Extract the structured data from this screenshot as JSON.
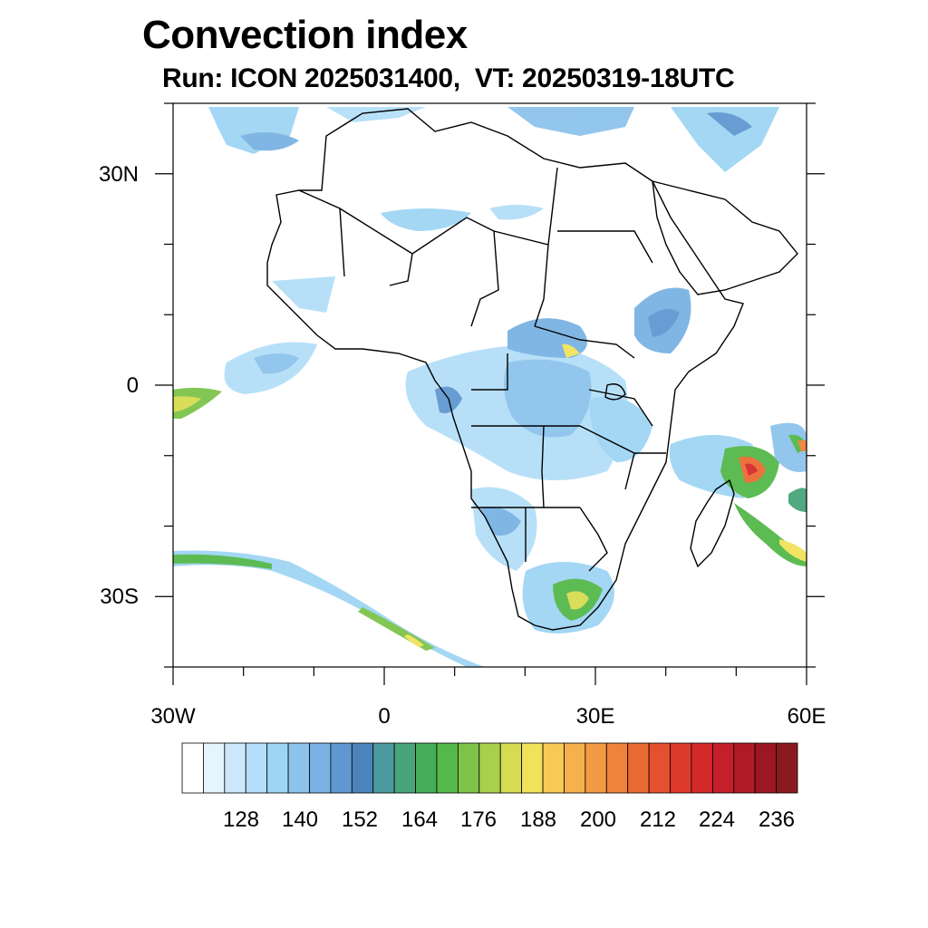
{
  "header": {
    "title": "Convection index",
    "subtitle": "Run: ICON 2025031400,  VT: 20250319-18UTC"
  },
  "axes": {
    "x_labels": [
      "30W",
      "0",
      "30E",
      "60E"
    ],
    "y_labels": [
      "30N",
      "0",
      "30S"
    ],
    "lon_range": [
      -30,
      60
    ],
    "lat_range": [
      -40,
      40
    ]
  },
  "colorbar": {
    "labels": [
      "128",
      "140",
      "152",
      "164",
      "176",
      "188",
      "200",
      "212",
      "224",
      "236"
    ],
    "colors": [
      "#ffffff",
      "#e6f4fd",
      "#cce8fa",
      "#b4dff8",
      "#9fd5f4",
      "#8ec3eb",
      "#7ab3e3",
      "#5f98d0",
      "#4b84bd",
      "#4b9aa0",
      "#48a57a",
      "#45ae58",
      "#55b84a",
      "#7ec34a",
      "#a9cf4c",
      "#d6dc52",
      "#f0e35a",
      "#f8c955",
      "#f7b04e",
      "#f39a44",
      "#ef833a",
      "#ea6a33",
      "#e5502e",
      "#de3a2c",
      "#d42a2c",
      "#c41f2a",
      "#b01a26",
      "#9c1722",
      "#8b1a1e"
    ]
  }
}
